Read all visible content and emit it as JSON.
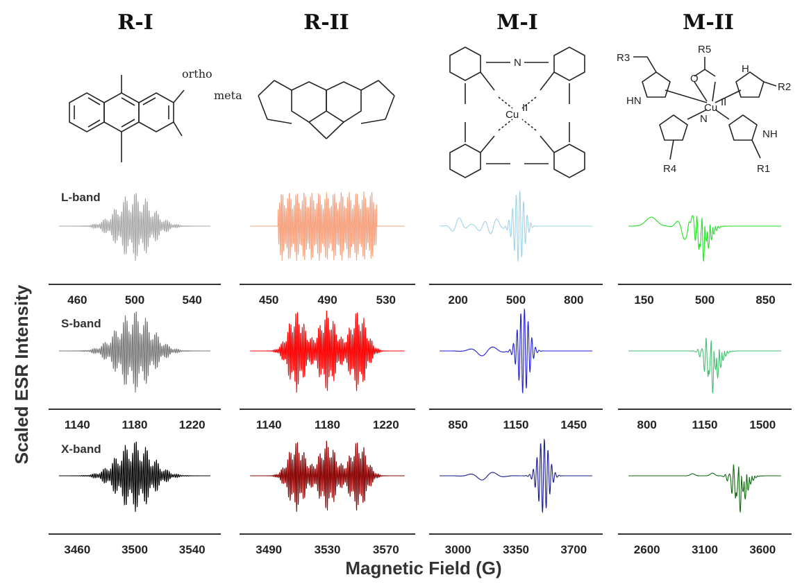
{
  "chart_data": {
    "type": "line",
    "ylabel": "Scaled ESR Intensity",
    "xlabel": "Magnetic Field (G)",
    "grid": false,
    "columns": [
      {
        "title": "R-I",
        "annotations": [
          "ortho",
          "meta"
        ]
      },
      {
        "title": "R-II",
        "annotations": []
      },
      {
        "title": "M-I",
        "annotations": [
          "N",
          "Cu",
          "II"
        ]
      },
      {
        "title": "M-II",
        "annotations": [
          "R1",
          "R2",
          "R3",
          "R4",
          "R5",
          "HN",
          "NH",
          "H",
          "N",
          "O",
          "Cu",
          "II"
        ]
      }
    ],
    "rows": [
      {
        "band": "L-band",
        "panels": [
          {
            "color": "#a8a8a8",
            "ticks": [
              "460",
              "500",
              "540"
            ],
            "xlim": [
              440,
              560
            ]
          },
          {
            "color": "#f6a27f",
            "ticks": [
              "450",
              "490",
              "530"
            ],
            "xlim": [
              430,
              550
            ]
          },
          {
            "color": "#9fd3ea",
            "ticks": [
              "200",
              "500",
              "800"
            ],
            "xlim": [
              50,
              950
            ]
          },
          {
            "color": "#22e022",
            "ticks": [
              "150",
              "500",
              "850"
            ],
            "xlim": [
              0,
              1000
            ]
          }
        ]
      },
      {
        "band": "S-band",
        "panels": [
          {
            "color": "#777777",
            "ticks": [
              "1140",
              "1180",
              "1220"
            ],
            "xlim": [
              1120,
              1240
            ]
          },
          {
            "color": "#ff0000",
            "ticks": [
              "1140",
              "1180",
              "1220"
            ],
            "xlim": [
              1120,
              1240
            ]
          },
          {
            "color": "#1f1fd6",
            "ticks": [
              "850",
              "1150",
              "1450"
            ],
            "xlim": [
              700,
              1600
            ]
          },
          {
            "color": "#40c070",
            "ticks": [
              "800",
              "1150",
              "1500"
            ],
            "xlim": [
              625,
              1675
            ]
          }
        ]
      },
      {
        "band": "X-band",
        "panels": [
          {
            "color": "#000000",
            "ticks": [
              "3460",
              "3500",
              "3540"
            ],
            "xlim": [
              3440,
              3560
            ]
          },
          {
            "color": "#8b0000",
            "ticks": [
              "3490",
              "3530",
              "3570"
            ],
            "xlim": [
              3470,
              3590
            ]
          },
          {
            "color": "#1a1a8c",
            "ticks": [
              "3000",
              "3350",
              "3700"
            ],
            "xlim": [
              2825,
              3875
            ]
          },
          {
            "color": "#0f6b0f",
            "ticks": [
              "2600",
              "3100",
              "3600"
            ],
            "xlim": [
              2350,
              3850
            ]
          }
        ]
      }
    ]
  }
}
